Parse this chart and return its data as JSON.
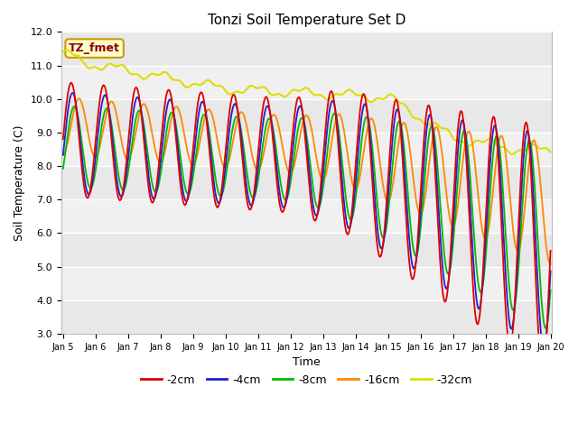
{
  "title": "Tonzi Soil Temperature Set D",
  "xlabel": "Time",
  "ylabel": "Soil Temperature (C)",
  "ylim": [
    3.0,
    12.0
  ],
  "yticks": [
    3.0,
    4.0,
    5.0,
    6.0,
    7.0,
    8.0,
    9.0,
    10.0,
    11.0,
    12.0
  ],
  "legend_labels": [
    "-2cm",
    "-4cm",
    "-8cm",
    "-16cm",
    "-32cm"
  ],
  "legend_colors": [
    "#dd0000",
    "#2222cc",
    "#00bb00",
    "#ff8800",
    "#dddd00"
  ],
  "line_widths": [
    1.3,
    1.3,
    1.3,
    1.3,
    1.5
  ],
  "annotation_text": "TZ_fmet",
  "annotation_color": "#880000",
  "annotation_bg": "#ffffcc",
  "annotation_edge": "#cc9900",
  "fig_bg": "#ffffff",
  "plot_bg": "#f0f0f0",
  "n_points": 720,
  "x_start": 5.0,
  "x_end": 20.0,
  "xtick_positions": [
    5,
    6,
    7,
    8,
    9,
    10,
    11,
    12,
    13,
    14,
    15,
    16,
    17,
    18,
    19,
    20
  ],
  "xtick_labels": [
    "Jan 5",
    "Jan 6",
    "Jan 7",
    "Jan 8",
    "Jan 9",
    "Jan 10",
    "Jan 11",
    "Jan 12",
    "Jan 13",
    "Jan 14",
    "Jan 15",
    "Jan 16",
    "Jan 17",
    "Jan 18",
    "Jan 19",
    "Jan 20"
  ]
}
